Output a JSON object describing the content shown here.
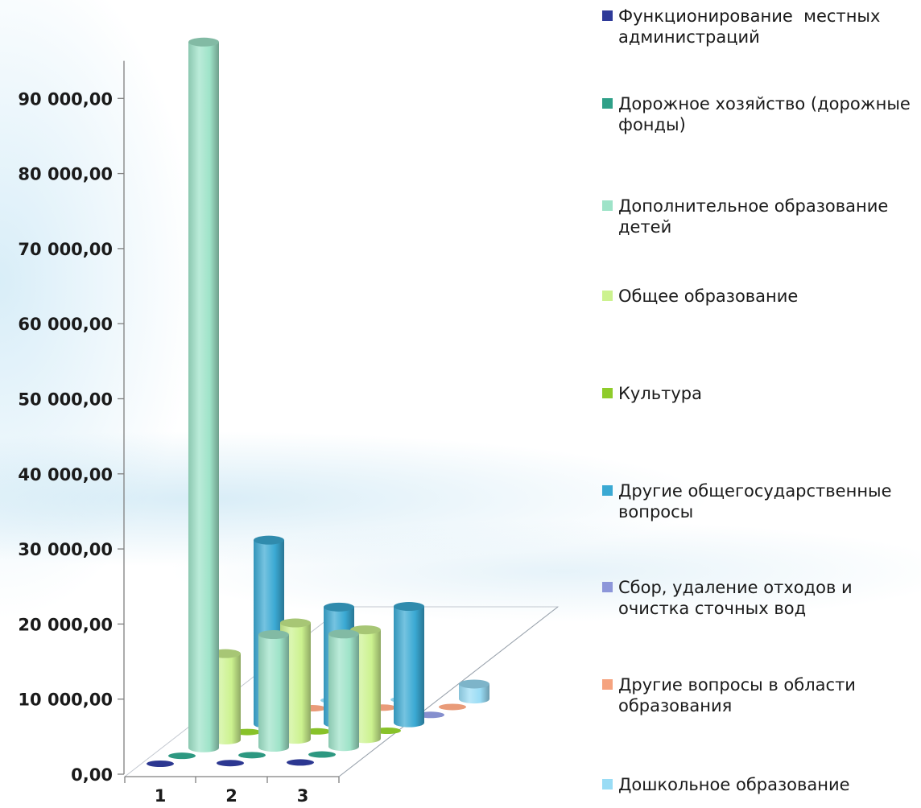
{
  "chart_data": {
    "type": "bar",
    "categories": [
      "1",
      "2",
      "3"
    ],
    "y_tick_labels": [
      "0,00",
      "10 000,00",
      "20 000,00",
      "30 000,00",
      "40 000,00",
      "50 000,00",
      "60 000,00",
      "70 000,00",
      "80 000,00",
      "90 000,00"
    ],
    "ylim": [
      0,
      95000
    ],
    "legend_position": "right",
    "series": [
      {
        "name": "Функционирование  местных администраций",
        "color": "#2e3a99",
        "values": [
          0,
          0,
          0
        ]
      },
      {
        "name": "Дорожное хозяйство (дорожные фонды)",
        "color": "#2fa088",
        "values": [
          0,
          0,
          0
        ]
      },
      {
        "name": "Дополнительное образование детей",
        "color": "#9ee3c8",
        "values": [
          94000,
          15000,
          15000
        ]
      },
      {
        "name": "Общее образование",
        "color": "#ccf28f",
        "values": [
          11500,
          15500,
          14500
        ]
      },
      {
        "name": "Культура",
        "color": "#8fcc2b",
        "values": [
          0,
          0,
          0
        ]
      },
      {
        "name": "Другие общегосударственные вопросы",
        "color": "#3aa9d3",
        "values": [
          24500,
          15500,
          15500
        ]
      },
      {
        "name": "Сбор, удаление отходов и очистка сточных вод",
        "color": "#8c96d9",
        "values": [
          0,
          0,
          0
        ]
      },
      {
        "name": "Другие вопросы в области образования",
        "color": "#f5a37f",
        "values": [
          0,
          0,
          0
        ]
      },
      {
        "name": "Дошкольное образование",
        "color": "#99dcf5",
        "values": [
          0,
          0,
          2000
        ]
      }
    ]
  }
}
